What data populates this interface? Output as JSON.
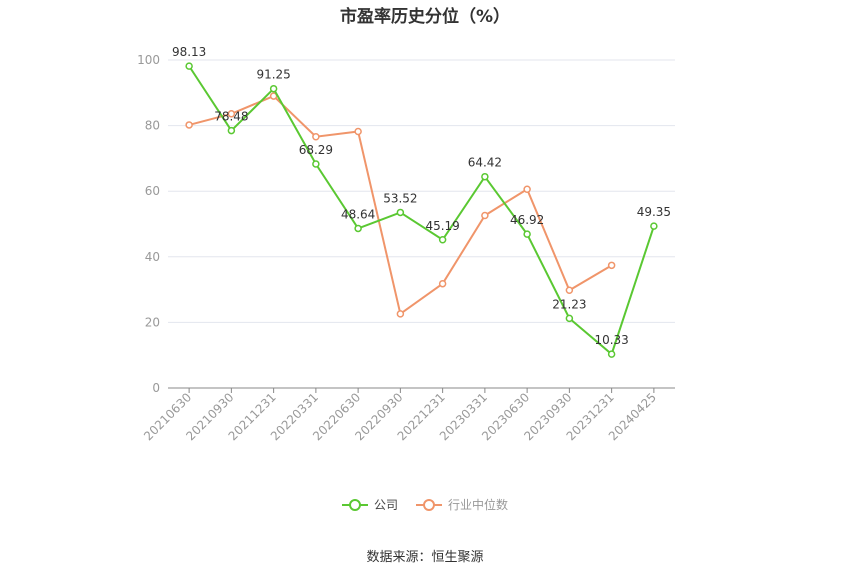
{
  "chart_data": {
    "type": "line",
    "title": "市盈率历史分位（%）",
    "categories": [
      "20210630",
      "20210930",
      "20211231",
      "20220331",
      "20220630",
      "20220930",
      "20221231",
      "20230331",
      "20230630",
      "20230930",
      "20231231",
      "20240425"
    ],
    "ylim": [
      0,
      100
    ],
    "yticks": [
      0,
      20,
      40,
      60,
      80,
      100
    ],
    "grid": true,
    "legend_position": "bottom",
    "series": [
      {
        "name": "公司",
        "color": "#5ac832",
        "labels": true,
        "values": [
          98.13,
          78.48,
          91.25,
          68.29,
          48.64,
          53.52,
          45.19,
          64.42,
          46.92,
          21.23,
          10.33,
          49.35
        ]
      },
      {
        "name": "行业中位数",
        "color": "#f0956a",
        "labels": false,
        "values": [
          80.2,
          83.6,
          89.0,
          76.6,
          78.2,
          22.6,
          31.8,
          52.6,
          60.6,
          29.8,
          37.4,
          null
        ]
      }
    ]
  },
  "source": "数据来源：恒生聚源"
}
